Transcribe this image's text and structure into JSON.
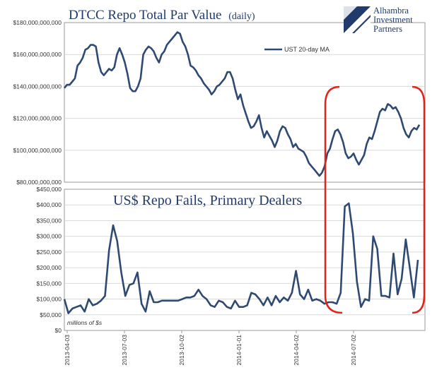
{
  "colors": {
    "series": "#2e4a73",
    "highlight": "#e2231a",
    "title": "#1f3a6b",
    "axis": "#808080"
  },
  "logo": {
    "lines": [
      "Alhambra",
      "Investment",
      "Partners"
    ],
    "icon": "flag-logo-icon"
  },
  "chart_data": [
    {
      "type": "line",
      "title": "DTCC Repo Total Par Value",
      "subtitle": "(daily)",
      "legend": {
        "label": "UST 20-day MA",
        "position": "top-right"
      },
      "y_ticks": [
        "$180,000,000,000",
        "$160,000,000,000",
        "$140,000,000,000",
        "$120,000,000,000",
        "$100,000,000,000",
        "$80,000,000,000"
      ],
      "ylim": [
        80000000000,
        180000000000
      ],
      "grid": true,
      "series": [
        {
          "values": [
            139,
            141,
            141,
            143,
            145,
            153,
            155,
            158,
            163,
            164,
            166,
            166,
            165,
            155,
            149,
            147,
            149,
            151,
            150,
            152,
            160,
            164,
            160,
            155,
            148,
            139,
            137,
            137,
            140,
            145,
            160,
            163,
            165,
            164,
            162,
            158,
            155,
            160,
            162,
            166,
            168,
            170,
            172,
            174,
            173,
            168,
            165,
            160,
            153,
            152,
            150,
            147,
            145,
            142,
            140,
            138,
            135,
            137,
            140,
            141,
            143,
            145,
            149,
            149,
            145,
            138,
            132,
            135,
            128,
            123,
            118,
            114,
            115,
            118,
            122,
            114,
            108,
            112,
            109,
            106,
            102,
            106,
            112,
            115,
            114,
            110,
            107,
            102,
            104,
            101,
            100,
            99,
            96,
            92,
            90,
            88,
            86,
            84,
            86,
            90,
            98,
            101,
            107,
            112,
            113,
            110,
            105,
            98,
            95,
            96,
            98,
            94,
            91,
            94,
            97,
            104,
            108,
            107,
            112,
            118,
            124,
            126,
            125,
            129,
            128,
            126,
            127,
            124,
            120,
            114,
            110,
            108,
            112,
            114,
            113,
            116
          ]
        }
      ]
    },
    {
      "type": "line",
      "title": "US$ Repo Fails, Primary Dealers",
      "y_ticks": [
        "$450,000",
        "$400,000",
        "$350,000",
        "$300,000",
        "$250,000",
        "$200,000",
        "$150,000",
        "$100,000",
        "$50,000",
        "$0"
      ],
      "ylim": [
        0,
        450000
      ],
      "ylabel": "millions of $s",
      "x_ticks": [
        "2013-04-03",
        "2013-07-03",
        "2013-10-02",
        "2014-01-01",
        "2014-04-02",
        "2014-07-02"
      ],
      "grid": true,
      "series": [
        {
          "values": [
            100,
            55,
            70,
            75,
            80,
            60,
            100,
            80,
            85,
            95,
            110,
            255,
            335,
            285,
            185,
            110,
            145,
            150,
            185,
            85,
            60,
            125,
            90,
            90,
            95,
            95,
            95,
            95,
            95,
            100,
            105,
            105,
            110,
            130,
            110,
            100,
            80,
            75,
            95,
            90,
            75,
            70,
            95,
            75,
            75,
            80,
            120,
            115,
            100,
            80,
            105,
            80,
            110,
            90,
            105,
            95,
            120,
            190,
            115,
            100,
            130,
            95,
            100,
            95,
            85,
            90,
            90,
            85,
            120,
            395,
            405,
            310,
            155,
            75,
            100,
            95,
            300,
            260,
            110,
            110,
            105,
            245,
            115,
            165,
            290,
            200,
            105,
            225
          ],
          "x_index_max": 111
        }
      ]
    }
  ]
}
